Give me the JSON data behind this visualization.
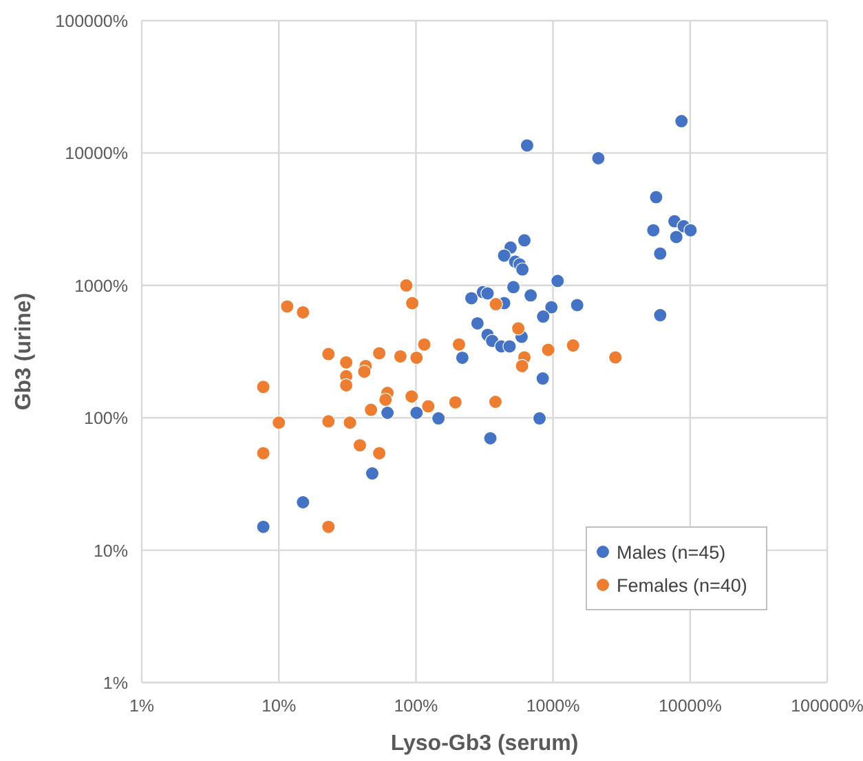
{
  "chart_data": {
    "type": "scatter",
    "xlabel": "Lyso-Gb3 (serum)",
    "ylabel": "Gb3 (urine)",
    "log": "xy",
    "grid": true,
    "legend": "bottom right",
    "marker": "circle",
    "xlim": [
      1,
      100000
    ],
    "ylim": [
      1,
      100000
    ],
    "xticks": [
      {
        "value": 1,
        "label": "1%"
      },
      {
        "value": 10,
        "label": "10%"
      },
      {
        "value": 100,
        "label": "100%"
      },
      {
        "value": 1000,
        "label": "1000%"
      },
      {
        "value": 10000,
        "label": "10000%"
      },
      {
        "value": 100000,
        "label": "100000%"
      }
    ],
    "yticks": [
      {
        "value": 1,
        "label": "1%"
      },
      {
        "value": 10,
        "label": "10%"
      },
      {
        "value": 100,
        "label": "100%"
      },
      {
        "value": 1000,
        "label": "1000%"
      },
      {
        "value": 10000,
        "label": "10000%"
      },
      {
        "value": 100000,
        "label": "100000%"
      }
    ],
    "series": [
      {
        "name": "Males (n=45)",
        "color": "#4472c4",
        "x": [
          254,
          281,
          218,
          62,
          101,
          146,
          48,
          15,
          7.7,
          647,
          2140,
          8650,
          5650,
          7690,
          8970,
          10070,
          5390,
          7930,
          6050,
          618,
          490,
          440,
          530,
          571,
          598,
          1080,
          514,
          308,
          333,
          440,
          687,
          973,
          847,
          1500,
          6050,
          333,
          360,
          420,
          482,
          590,
          841,
          797,
          349
        ],
        "values": [
          800,
          517,
          284,
          109,
          109,
          99,
          38,
          23,
          15,
          11400,
          9140,
          17420,
          4640,
          3050,
          2800,
          2610,
          2610,
          2320,
          1740,
          2190,
          1930,
          1680,
          1510,
          1440,
          1320,
          1080,
          970,
          890,
          870,
          735,
          840,
          684,
          582,
          710,
          596,
          423,
          381,
          346,
          346,
          409,
          198,
          99,
          70
        ]
      },
      {
        "name": "Females (n=40)",
        "color": "#ed7d31",
        "x": [
          85,
          94,
          11.5,
          15,
          23,
          31,
          54,
          77,
          101,
          115,
          206,
          43,
          42,
          31,
          31,
          7.7,
          62,
          60,
          93,
          123,
          194,
          47,
          10,
          23,
          33,
          39,
          54,
          7.7,
          23,
          383,
          558,
          922,
          1400,
          2850,
          618,
          594,
          380
        ],
        "values": [
          1000,
          735,
          693,
          626,
          303,
          262,
          307,
          291,
          284,
          358,
          358,
          246,
          223,
          206,
          176,
          171,
          154,
          137,
          145,
          122,
          131,
          115,
          92,
          94,
          92,
          62,
          54,
          54,
          15,
          722,
          473,
          326,
          352,
          286,
          286,
          246,
          132
        ]
      }
    ]
  }
}
